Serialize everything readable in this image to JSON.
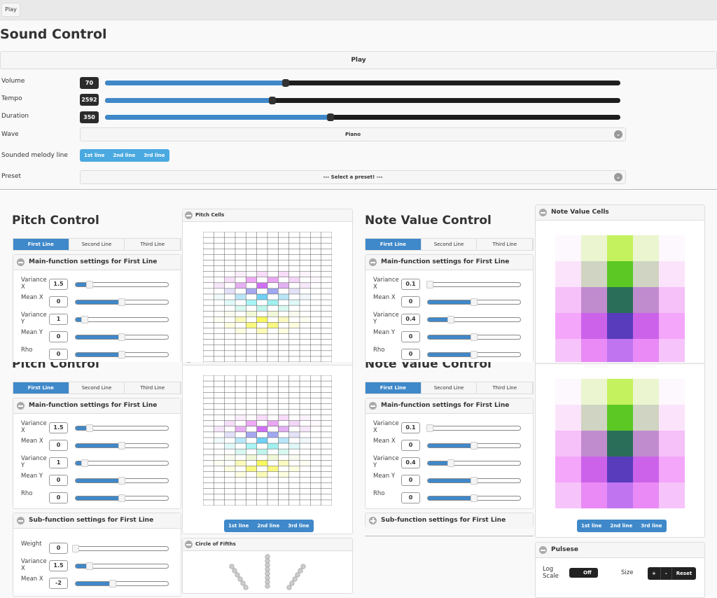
{
  "topbar": {
    "play_label": "Play"
  },
  "sound": {
    "title": "Sound Control",
    "play_label": "Play",
    "volume": {
      "label": "Volume",
      "value": "70",
      "fraction": 0.35
    },
    "tempo": {
      "label": "Tempo",
      "value": "2592",
      "fraction": 0.325
    },
    "duration": {
      "label": "Duration",
      "value": "350",
      "fraction": 0.437
    },
    "wave": {
      "label": "Wave",
      "value": "Piano"
    },
    "melody": {
      "label": "Sounded melody line",
      "options": [
        "1st line",
        "2nd line",
        "3rd line"
      ]
    },
    "preset": {
      "label": "Preset",
      "value": "--- Select a preset! ---"
    }
  },
  "pitch": {
    "title": "Pitch Control",
    "tabs": [
      "First Line",
      "Second Line",
      "Third Line"
    ],
    "main_title": "Main-function settings for First Line",
    "main_rows": [
      {
        "label": "Variance X",
        "value": "1.5",
        "fraction": 0.15
      },
      {
        "label": "Mean X",
        "value": "0",
        "fraction": 0.5
      },
      {
        "label": "Variance Y",
        "value": "1",
        "fraction": 0.1
      },
      {
        "label": "Mean Y",
        "value": "0",
        "fraction": 0.5
      },
      {
        "label": "Rho",
        "value": "0",
        "fraction": 0.5
      }
    ],
    "sub_title": "Sub-function settings for First Line",
    "sub_rows": [
      {
        "label": "Weight",
        "value": "0",
        "fraction": 0.0
      },
      {
        "label": "Variance X",
        "value": "1.5",
        "fraction": 0.15
      },
      {
        "label": "Mean X",
        "value": "-2",
        "fraction": 0.4
      }
    ],
    "cells_title": "Pitch Cells",
    "line_buttons": [
      "1st line",
      "2nd line",
      "3rd line"
    ],
    "fifths_title": "Circle of Fifths",
    "cells": [
      [
        7,
        3,
        "#fbeefc"
      ],
      [
        7,
        5,
        "#f8dcfa"
      ],
      [
        7,
        7,
        "#f8dcfa"
      ],
      [
        7,
        9,
        "#fcf3fd"
      ],
      [
        8,
        0,
        "#fdfafd"
      ],
      [
        8,
        2,
        "#f6defa"
      ],
      [
        8,
        4,
        "#eeaaf5"
      ],
      [
        8,
        6,
        "#e9a6f3"
      ],
      [
        8,
        8,
        "#f3d6f8"
      ],
      [
        8,
        10,
        "#fdf8fd"
      ],
      [
        9,
        1,
        "#f6e6fa"
      ],
      [
        9,
        3,
        "#e6b0f2"
      ],
      [
        9,
        5,
        "#d070f5"
      ],
      [
        9,
        7,
        "#e2b0f3"
      ],
      [
        9,
        9,
        "#f6e8fa"
      ],
      [
        10,
        2,
        "#e2e0f8"
      ],
      [
        10,
        4,
        "#a8a8f0"
      ],
      [
        10,
        6,
        "#a0a8f0"
      ],
      [
        10,
        8,
        "#e4e2f8"
      ],
      [
        11,
        1,
        "#f0fafc"
      ],
      [
        11,
        3,
        "#b8e6f8"
      ],
      [
        11,
        5,
        "#70d0f5"
      ],
      [
        11,
        7,
        "#b8e6f8"
      ],
      [
        11,
        9,
        "#f0f8fc"
      ],
      [
        12,
        2,
        "#e0fafa"
      ],
      [
        12,
        4,
        "#a8f4f4"
      ],
      [
        12,
        6,
        "#a0f0f0"
      ],
      [
        12,
        8,
        "#e0f8f8"
      ],
      [
        13,
        3,
        "#d8f8f0"
      ],
      [
        13,
        5,
        "#c0f5ec"
      ],
      [
        13,
        7,
        "#d8f8f0"
      ],
      [
        14,
        2,
        "#f8fcee"
      ],
      [
        14,
        4,
        "#f0f8d8"
      ],
      [
        14,
        6,
        "#f0f8d8"
      ],
      [
        14,
        8,
        "#f8fcee"
      ],
      [
        15,
        1,
        "#fdfdf2"
      ],
      [
        15,
        3,
        "#fafab8"
      ],
      [
        15,
        5,
        "#f8f860"
      ],
      [
        15,
        7,
        "#fafac0"
      ],
      [
        15,
        9,
        "#fdfdf2"
      ],
      [
        16,
        2,
        "#fdfde0"
      ],
      [
        16,
        4,
        "#f8f880"
      ],
      [
        16,
        6,
        "#f8f880"
      ],
      [
        16,
        8,
        "#fdfde0"
      ],
      [
        17,
        3,
        "#fdfde0"
      ],
      [
        17,
        5,
        "#fbfbb8"
      ],
      [
        17,
        7,
        "#fdfde0"
      ]
    ]
  },
  "note": {
    "title": "Note Value Control",
    "tabs": [
      "First Line",
      "Second Line",
      "Third Line"
    ],
    "main_title": "Main-function settings for First Line",
    "main_rows": [
      {
        "label": "Variance X",
        "value": "0.1",
        "fraction": 0.02
      },
      {
        "label": "Mean X",
        "value": "0",
        "fraction": 0.5
      },
      {
        "label": "Variance Y",
        "value": "0.4",
        "fraction": 0.25
      },
      {
        "label": "Mean Y",
        "value": "0",
        "fraction": 0.5
      },
      {
        "label": "Rho",
        "value": "0",
        "fraction": 0.5
      }
    ],
    "sub_title": "Sub-function settings for First Line",
    "cells_title": "Note Value Cells",
    "line_buttons": [
      "1st line",
      "2nd line",
      "3rd line"
    ],
    "cells": [
      [
        "#fdf8fd",
        "#ebf5cf",
        "#c4f25e",
        "#ebf5cf",
        "#fdf8fd"
      ],
      [
        "#fbe4fb",
        "#d0d4c2",
        "#5cc823",
        "#d0d4c2",
        "#fbe4fb"
      ],
      [
        "#f6c0f9",
        "#c08cce",
        "#2a6e5a",
        "#c08cce",
        "#f6c0f9"
      ],
      [
        "#f4a6fa",
        "#cd62ea",
        "#583cbc",
        "#cd62ea",
        "#f4a6fa"
      ],
      [
        "#f6c4fb",
        "#ea8af6",
        "#c074f0",
        "#ea8af6",
        "#f6c4fb"
      ]
    ]
  },
  "pulses": {
    "title": "Pulsese",
    "log_scale_label": "Log Scale",
    "log_scale_value": "Off",
    "size_label": "Size",
    "size_buttons": [
      "+",
      "-",
      "Reset"
    ]
  },
  "colors": {
    "accent": "#3f88c9",
    "melody_accent": "#4aa9e0",
    "badge": "#2b2b2b"
  }
}
